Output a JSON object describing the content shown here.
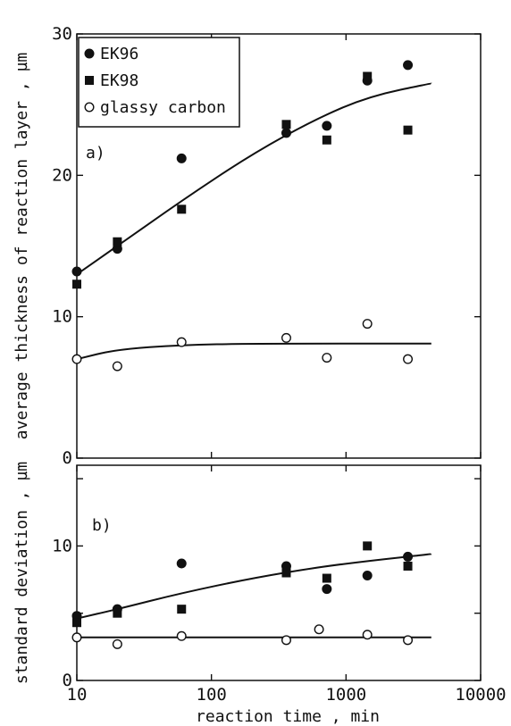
{
  "chart_data": [
    {
      "type": "scatter",
      "panel_label": "a)",
      "ylabel": "average thickness of reaction layer , µm",
      "xscale": "log",
      "xlim": [
        10,
        10000
      ],
      "ylim": [
        0,
        30
      ],
      "yticks": [
        0,
        10,
        20,
        30
      ],
      "ytick_labels": [
        "0",
        "10",
        "20",
        "30"
      ],
      "legend": {
        "placement": "top-left",
        "entries": [
          {
            "label": "EK96",
            "marker": "filled-circle"
          },
          {
            "label": "EK98",
            "marker": "filled-square"
          },
          {
            "label": "glassy carbon",
            "marker": "open-circle"
          }
        ]
      },
      "series": [
        {
          "marker": "filled-circle",
          "points": [
            [
              10,
              13.2
            ],
            [
              20,
              14.8
            ],
            [
              60,
              21.2
            ],
            [
              360,
              23.0
            ],
            [
              720,
              23.5
            ],
            [
              1440,
              26.7
            ],
            [
              2880,
              27.8
            ]
          ]
        },
        {
          "marker": "filled-square",
          "points": [
            [
              10,
              12.3
            ],
            [
              20,
              15.3
            ],
            [
              60,
              17.6
            ],
            [
              360,
              23.6
            ],
            [
              720,
              22.5
            ],
            [
              1440,
              27.0
            ],
            [
              2880,
              23.2
            ]
          ]
        },
        {
          "marker": "open-circle",
          "points": [
            [
              10,
              7.0
            ],
            [
              20,
              6.5
            ],
            [
              60,
              8.2
            ],
            [
              360,
              8.5
            ],
            [
              720,
              7.1
            ],
            [
              1440,
              9.5
            ],
            [
              2880,
              7.0
            ]
          ]
        }
      ],
      "fit_curves": [
        {
          "points": [
            [
              10,
              13.0
            ],
            [
              20,
              15.0
            ],
            [
              60,
              18.2
            ],
            [
              200,
              21.5
            ],
            [
              600,
              24.0
            ],
            [
              1500,
              25.6
            ],
            [
              4300,
              26.5
            ]
          ]
        },
        {
          "points": [
            [
              10,
              7.0
            ],
            [
              20,
              7.7
            ],
            [
              60,
              8.0
            ],
            [
              200,
              8.1
            ],
            [
              4300,
              8.1
            ]
          ]
        }
      ]
    },
    {
      "type": "scatter",
      "panel_label": "b)",
      "ylabel": "standard deviation , µm",
      "xlabel": "reaction time , min",
      "xscale": "log",
      "xlim": [
        10,
        10000
      ],
      "xticks": [
        10,
        100,
        1000,
        10000
      ],
      "xtick_labels": [
        "10",
        "100",
        "1000",
        "10000"
      ],
      "ylim": [
        0,
        16
      ],
      "yticks": [
        0,
        5,
        10,
        15
      ],
      "ytick_labels": [
        "0",
        "",
        "10",
        ""
      ],
      "series": [
        {
          "marker": "filled-circle",
          "points": [
            [
              10,
              4.8
            ],
            [
              20,
              5.3
            ],
            [
              60,
              8.7
            ],
            [
              360,
              8.5
            ],
            [
              720,
              6.8
            ],
            [
              1440,
              7.8
            ],
            [
              2880,
              9.2
            ]
          ]
        },
        {
          "marker": "filled-square",
          "points": [
            [
              10,
              4.3
            ],
            [
              20,
              5.0
            ],
            [
              60,
              5.3
            ],
            [
              360,
              8.0
            ],
            [
              720,
              7.6
            ],
            [
              1440,
              10.0
            ],
            [
              2880,
              8.5
            ]
          ]
        },
        {
          "marker": "open-circle",
          "points": [
            [
              10,
              3.2
            ],
            [
              20,
              2.7
            ],
            [
              60,
              3.3
            ],
            [
              360,
              3.0
            ],
            [
              630,
              3.8
            ],
            [
              1440,
              3.4
            ],
            [
              2880,
              3.0
            ]
          ]
        }
      ],
      "fit_curves": [
        {
          "points": [
            [
              10,
              4.6
            ],
            [
              20,
              5.3
            ],
            [
              60,
              6.5
            ],
            [
              200,
              7.6
            ],
            [
              600,
              8.4
            ],
            [
              1500,
              8.9
            ],
            [
              4300,
              9.4
            ]
          ]
        },
        {
          "points": [
            [
              10,
              3.2
            ],
            [
              4300,
              3.2
            ]
          ]
        }
      ]
    }
  ]
}
